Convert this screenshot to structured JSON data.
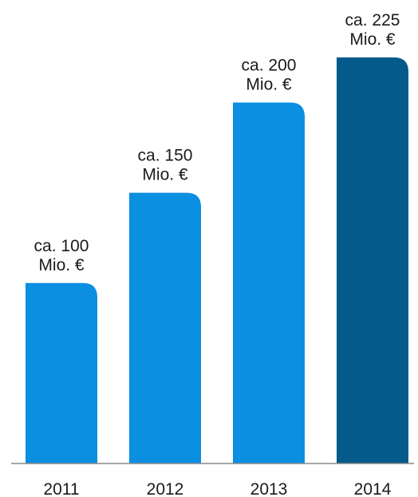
{
  "chart_data": {
    "type": "bar",
    "categories": [
      "2011",
      "2012",
      "2013",
      "2014"
    ],
    "values": [
      100,
      150,
      200,
      225
    ],
    "data_labels": [
      [
        "ca. 100",
        "Mio. €"
      ],
      [
        "ca. 150",
        "Mio. €"
      ],
      [
        "ca. 200",
        "Mio. €"
      ],
      [
        "ca. 225",
        "Mio. €"
      ]
    ],
    "unit": "Mio. €",
    "title": "",
    "xlabel": "",
    "ylabel": "",
    "ylim": [
      0,
      225
    ],
    "grid": false,
    "legend": "none",
    "colors": [
      "#0b8fe0",
      "#0b8fe0",
      "#0b8fe0",
      "#045a8a"
    ],
    "axis_color": "#8a8a8a"
  }
}
